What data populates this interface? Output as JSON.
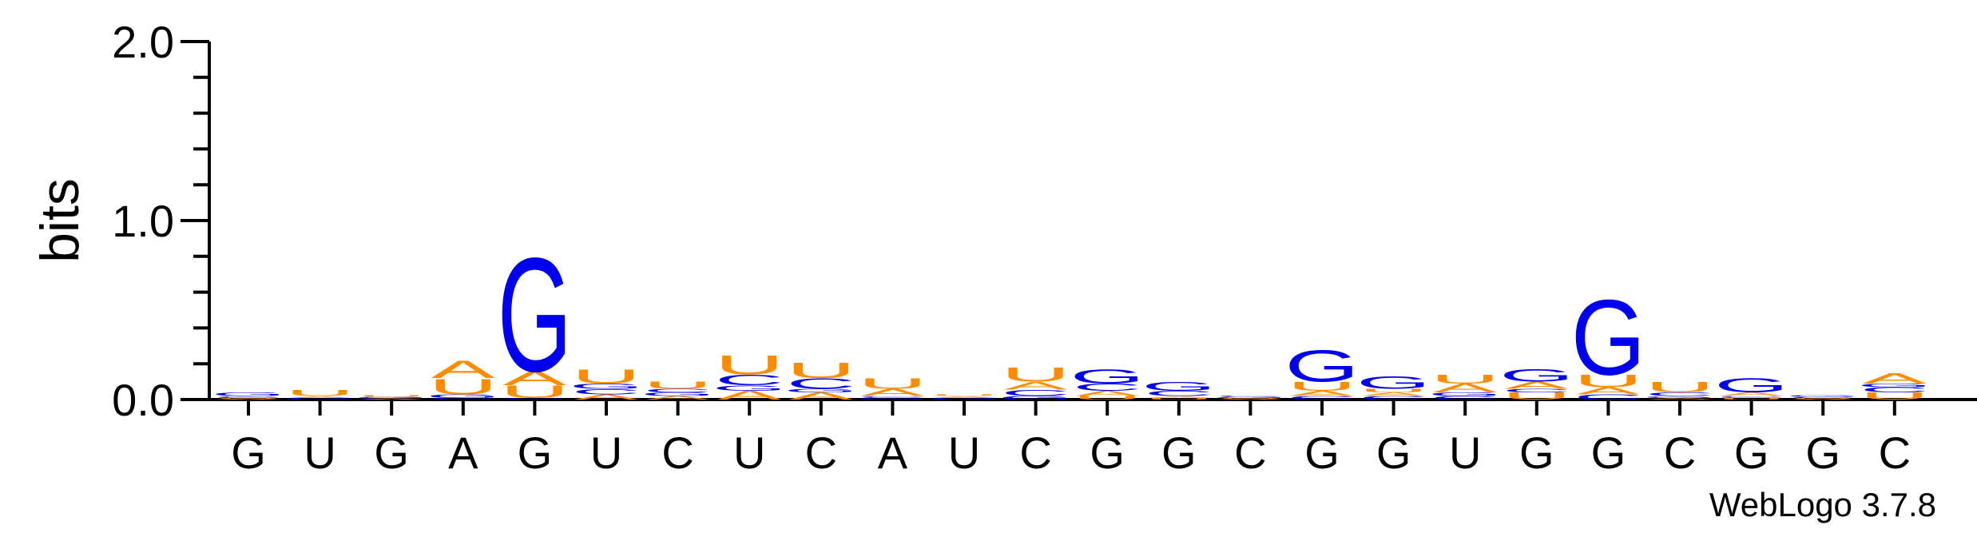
{
  "chart_data": {
    "type": "sequence-logo",
    "ylabel": "bits",
    "ylim": [
      0,
      2.0
    ],
    "yticks": [
      "0.0",
      "1.0",
      "2.0"
    ],
    "x_tick_labels": [
      "G",
      "U",
      "G",
      "A",
      "G",
      "U",
      "C",
      "U",
      "C",
      "A",
      "U",
      "C",
      "G",
      "G",
      "C",
      "G",
      "G",
      "U",
      "G",
      "G",
      "C",
      "G",
      "G",
      "C"
    ],
    "credit": "WebLogo 3.7.8",
    "colors": {
      "G": "#0000ee",
      "C": "#0000ee",
      "A": "#ff8c00",
      "U": "#ff8c00"
    },
    "positions": [
      {
        "consensus": "G",
        "stack": [
          {
            "letter": "A",
            "bits": 0.005
          },
          {
            "letter": "U",
            "bits": 0.005
          },
          {
            "letter": "C",
            "bits": 0.01
          },
          {
            "letter": "G",
            "bits": 0.02
          }
        ]
      },
      {
        "consensus": "U",
        "stack": [
          {
            "letter": "G",
            "bits": 0.005
          },
          {
            "letter": "C",
            "bits": 0.005
          },
          {
            "letter": "A",
            "bits": 0.01
          },
          {
            "letter": "U",
            "bits": 0.035
          }
        ]
      },
      {
        "consensus": "G",
        "stack": [
          {
            "letter": "A",
            "bits": 0.005
          },
          {
            "letter": "C",
            "bits": 0.005
          },
          {
            "letter": "G",
            "bits": 0.005
          },
          {
            "letter": "U",
            "bits": 0.01
          }
        ]
      },
      {
        "consensus": "A",
        "stack": [
          {
            "letter": "C",
            "bits": 0.01
          },
          {
            "letter": "G",
            "bits": 0.02
          },
          {
            "letter": "U",
            "bits": 0.09
          },
          {
            "letter": "A",
            "bits": 0.1
          }
        ]
      },
      {
        "consensus": "G",
        "stack": [
          {
            "letter": "C",
            "bits": 0.01
          },
          {
            "letter": "U",
            "bits": 0.07
          },
          {
            "letter": "A",
            "bits": 0.08
          },
          {
            "letter": "G",
            "bits": 0.65
          }
        ]
      },
      {
        "consensus": "U",
        "stack": [
          {
            "letter": "A",
            "bits": 0.03
          },
          {
            "letter": "C",
            "bits": 0.03
          },
          {
            "letter": "G",
            "bits": 0.03
          },
          {
            "letter": "U",
            "bits": 0.08
          }
        ]
      },
      {
        "consensus": "C",
        "stack": [
          {
            "letter": "A",
            "bits": 0.02
          },
          {
            "letter": "G",
            "bits": 0.02
          },
          {
            "letter": "C",
            "bits": 0.02
          },
          {
            "letter": "U",
            "bits": 0.04
          }
        ]
      },
      {
        "consensus": "U",
        "stack": [
          {
            "letter": "A",
            "bits": 0.05
          },
          {
            "letter": "G",
            "bits": 0.03
          },
          {
            "letter": "C",
            "bits": 0.06
          },
          {
            "letter": "U",
            "bits": 0.11
          }
        ]
      },
      {
        "consensus": "C",
        "stack": [
          {
            "letter": "A",
            "bits": 0.04
          },
          {
            "letter": "G",
            "bits": 0.02
          },
          {
            "letter": "C",
            "bits": 0.06
          },
          {
            "letter": "U",
            "bits": 0.09
          }
        ]
      },
      {
        "consensus": "A",
        "stack": [
          {
            "letter": "G",
            "bits": 0.01
          },
          {
            "letter": "C",
            "bits": 0.01
          },
          {
            "letter": "A",
            "bits": 0.04
          },
          {
            "letter": "U",
            "bits": 0.06
          }
        ]
      },
      {
        "consensus": "U",
        "stack": [
          {
            "letter": "G",
            "bits": 0.005
          },
          {
            "letter": "C",
            "bits": 0.005
          },
          {
            "letter": "A",
            "bits": 0.01
          },
          {
            "letter": "U",
            "bits": 0.01
          }
        ]
      },
      {
        "consensus": "C",
        "stack": [
          {
            "letter": "G",
            "bits": 0.02
          },
          {
            "letter": "C",
            "bits": 0.035
          },
          {
            "letter": "A",
            "bits": 0.045
          },
          {
            "letter": "U",
            "bits": 0.08
          }
        ]
      },
      {
        "consensus": "G",
        "stack": [
          {
            "letter": "U",
            "bits": 0.02
          },
          {
            "letter": "A",
            "bits": 0.03
          },
          {
            "letter": "C",
            "bits": 0.04
          },
          {
            "letter": "G",
            "bits": 0.08
          }
        ]
      },
      {
        "consensus": "G",
        "stack": [
          {
            "letter": "U",
            "bits": 0.01
          },
          {
            "letter": "A",
            "bits": 0.01
          },
          {
            "letter": "C",
            "bits": 0.03
          },
          {
            "letter": "G",
            "bits": 0.05
          }
        ]
      },
      {
        "consensus": "C",
        "stack": [
          {
            "letter": "A",
            "bits": 0.005
          },
          {
            "letter": "U",
            "bits": 0.005
          },
          {
            "letter": "G",
            "bits": 0.005
          },
          {
            "letter": "C",
            "bits": 0.005
          }
        ]
      },
      {
        "consensus": "G",
        "stack": [
          {
            "letter": "C",
            "bits": 0.02
          },
          {
            "letter": "A",
            "bits": 0.03
          },
          {
            "letter": "U",
            "bits": 0.05
          },
          {
            "letter": "G",
            "bits": 0.18
          }
        ]
      },
      {
        "consensus": "G",
        "stack": [
          {
            "letter": "C",
            "bits": 0.02
          },
          {
            "letter": "A",
            "bits": 0.02
          },
          {
            "letter": "U",
            "bits": 0.02
          },
          {
            "letter": "G",
            "bits": 0.07
          }
        ]
      },
      {
        "consensus": "U",
        "stack": [
          {
            "letter": "C",
            "bits": 0.02
          },
          {
            "letter": "G",
            "bits": 0.02
          },
          {
            "letter": "A",
            "bits": 0.05
          },
          {
            "letter": "U",
            "bits": 0.05
          }
        ]
      },
      {
        "consensus": "G",
        "stack": [
          {
            "letter": "U",
            "bits": 0.04
          },
          {
            "letter": "C",
            "bits": 0.02
          },
          {
            "letter": "A",
            "bits": 0.04
          },
          {
            "letter": "G",
            "bits": 0.07
          }
        ]
      },
      {
        "consensus": "G",
        "stack": [
          {
            "letter": "C",
            "bits": 0.03
          },
          {
            "letter": "A",
            "bits": 0.04
          },
          {
            "letter": "U",
            "bits": 0.07
          },
          {
            "letter": "G",
            "bits": 0.43
          }
        ]
      },
      {
        "consensus": "C",
        "stack": [
          {
            "letter": "A",
            "bits": 0.01
          },
          {
            "letter": "G",
            "bits": 0.01
          },
          {
            "letter": "C",
            "bits": 0.02
          },
          {
            "letter": "U",
            "bits": 0.06
          }
        ]
      },
      {
        "consensus": "G",
        "stack": [
          {
            "letter": "U",
            "bits": 0.01
          },
          {
            "letter": "C",
            "bits": 0.01
          },
          {
            "letter": "A",
            "bits": 0.02
          },
          {
            "letter": "G",
            "bits": 0.08
          }
        ]
      },
      {
        "consensus": "G",
        "stack": [
          {
            "letter": "A",
            "bits": 0.005
          },
          {
            "letter": "U",
            "bits": 0.005
          },
          {
            "letter": "C",
            "bits": 0.005
          },
          {
            "letter": "G",
            "bits": 0.01
          }
        ]
      },
      {
        "consensus": "C",
        "stack": [
          {
            "letter": "U",
            "bits": 0.04
          },
          {
            "letter": "C",
            "bits": 0.03
          },
          {
            "letter": "G",
            "bits": 0.02
          },
          {
            "letter": "A",
            "bits": 0.06
          }
        ]
      }
    ]
  }
}
